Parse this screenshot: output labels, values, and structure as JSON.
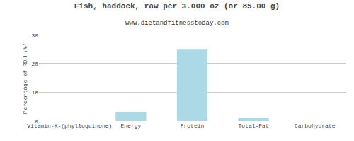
{
  "chart_data": {
    "type": "bar",
    "title": "Fish, haddock, raw per 3.000 oz (or 85.00 g)",
    "subtitle": "www.dietandfitnesstoday.com",
    "categories": [
      "Vitamin-K-(phylloquinone)",
      "Energy",
      "Protein",
      "Total-Fat",
      "Carbohydrate"
    ],
    "values": [
      0,
      3.2,
      25.0,
      1.0,
      0
    ],
    "color": "#add8e6",
    "ylabel": "Percentage of RDH (%)",
    "ylim": [
      0,
      30
    ],
    "yticks": [
      0,
      10,
      20,
      30
    ],
    "grid": true
  }
}
